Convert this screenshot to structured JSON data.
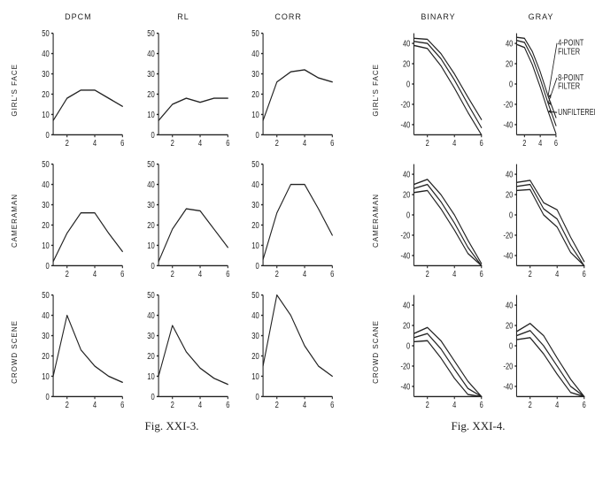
{
  "colors": {
    "background": "#ffffff",
    "ink": "#222222"
  },
  "typography": {
    "header_fontsize": 9,
    "rowlabel_fontsize": 8,
    "tick_fontsize": 7,
    "caption_fontsize": 13,
    "caption_family": "Times New Roman"
  },
  "figure_left": {
    "caption": "Fig. XXI-3.",
    "columns": [
      "DPCM",
      "RL",
      "CORR"
    ],
    "rows": [
      "GIRL'S FACE",
      "CAMERAMAN",
      "CROWD SCENE"
    ],
    "panel": {
      "xlim": [
        1,
        6
      ],
      "ylim": [
        0,
        50
      ],
      "xticks": [
        2,
        4,
        6
      ],
      "yticks": [
        0,
        10,
        20,
        30,
        40,
        50
      ],
      "xtick_labels": [
        "2",
        "4",
        "6"
      ],
      "ytick_labels": [
        "0",
        "10",
        "20",
        "30",
        "40",
        "50"
      ],
      "line_color": "#222222",
      "line_width": 1
    },
    "data": {
      "girls_face": {
        "dpcm": {
          "x": [
            1,
            2,
            3,
            4,
            5,
            6
          ],
          "y": [
            7,
            18,
            22,
            22,
            18,
            14
          ]
        },
        "rl": {
          "x": [
            1,
            2,
            3,
            4,
            5,
            6
          ],
          "y": [
            7,
            15,
            18,
            16,
            18,
            18
          ]
        },
        "corr": {
          "x": [
            1,
            2,
            3,
            4,
            5,
            6
          ],
          "y": [
            7,
            26,
            31,
            32,
            28,
            26
          ]
        }
      },
      "cameraman": {
        "dpcm": {
          "x": [
            1,
            2,
            3,
            4,
            5,
            6
          ],
          "y": [
            2,
            16,
            26,
            26,
            16,
            7
          ]
        },
        "rl": {
          "x": [
            1,
            2,
            3,
            4,
            5,
            6
          ],
          "y": [
            2,
            18,
            28,
            27,
            18,
            9
          ]
        },
        "corr": {
          "x": [
            1,
            2,
            3,
            4,
            5,
            6
          ],
          "y": [
            3,
            26,
            40,
            40,
            28,
            15
          ]
        }
      },
      "crowd_scene": {
        "dpcm": {
          "x": [
            1,
            2,
            3,
            4,
            5,
            6
          ],
          "y": [
            10,
            40,
            23,
            15,
            10,
            7
          ]
        },
        "rl": {
          "x": [
            1,
            2,
            3,
            4,
            5,
            6
          ],
          "y": [
            10,
            35,
            22,
            14,
            9,
            6
          ]
        },
        "corr": {
          "x": [
            1,
            2,
            3,
            4,
            5,
            6
          ],
          "y": [
            15,
            50,
            40,
            25,
            15,
            10
          ]
        }
      }
    }
  },
  "figure_right": {
    "caption": "Fig. XXI-4.",
    "columns": [
      "BINARY",
      "GRAY"
    ],
    "rows": [
      "GIRL'S FACE",
      "CAMERAMAN",
      "CROWD SCANE"
    ],
    "panel": {
      "xlim": [
        1,
        6
      ],
      "ylim": [
        -50,
        50
      ],
      "xticks": [
        2,
        4,
        6
      ],
      "yticks": [
        -40,
        -20,
        0,
        20,
        40
      ],
      "xtick_labels": [
        "2",
        "4",
        "6"
      ],
      "ytick_labels": [
        "-40",
        "-20",
        "0",
        "20",
        "40"
      ],
      "line_color": "#222222",
      "line_width": 1
    },
    "series_order": [
      "four_point",
      "eight_point",
      "unfiltered"
    ],
    "annotations_on": {
      "row": 0,
      "col": 1
    },
    "annotation_labels": {
      "four_point": "4-POINT FILTER",
      "eight_point": "8-POINT FILTER",
      "unfiltered": "UNFILTERED"
    },
    "data": {
      "girls_face": {
        "binary": {
          "four_point": {
            "x": [
              1,
              2,
              3,
              4,
              5,
              6
            ],
            "y": [
              45,
              44,
              30,
              10,
              -13,
              -35
            ]
          },
          "eight_point": {
            "x": [
              1,
              2,
              3,
              4,
              5,
              6
            ],
            "y": [
              42,
              40,
              25,
              4,
              -20,
              -43
            ]
          },
          "unfiltered": {
            "x": [
              1,
              2,
              3,
              4,
              5,
              6
            ],
            "y": [
              38,
              35,
              18,
              -4,
              -28,
              -50
            ]
          }
        },
        "gray": {
          "four_point": {
            "x": [
              1,
              2,
              3,
              4,
              5,
              6
            ],
            "y": [
              46,
              45,
              32,
              12,
              -12,
              -33
            ]
          },
          "eight_point": {
            "x": [
              1,
              2,
              3,
              4,
              5,
              6
            ],
            "y": [
              43,
              41,
              26,
              5,
              -19,
              -41
            ]
          },
          "unfiltered": {
            "x": [
              1,
              2,
              3,
              4,
              5,
              6
            ],
            "y": [
              39,
              36,
              19,
              -3,
              -27,
              -49
            ]
          }
        }
      },
      "cameraman": {
        "binary": {
          "four_point": {
            "x": [
              1,
              2,
              3,
              4,
              5,
              6
            ],
            "y": [
              30,
              35,
              20,
              0,
              -25,
              -48
            ]
          },
          "eight_point": {
            "x": [
              1,
              2,
              3,
              4,
              5,
              6
            ],
            "y": [
              26,
              30,
              13,
              -8,
              -32,
              -50
            ]
          },
          "unfiltered": {
            "x": [
              1,
              2,
              3,
              4,
              5,
              6
            ],
            "y": [
              22,
              24,
              6,
              -15,
              -38,
              -50
            ]
          }
        },
        "gray": {
          "four_point": {
            "x": [
              1,
              2,
              3,
              4,
              5,
              6
            ],
            "y": [
              32,
              34,
              12,
              5,
              -22,
              -46
            ]
          },
          "eight_point": {
            "x": [
              1,
              2,
              3,
              4,
              5,
              6
            ],
            "y": [
              28,
              30,
              6,
              -4,
              -30,
              -50
            ]
          },
          "unfiltered": {
            "x": [
              1,
              2,
              3,
              4,
              5,
              6
            ],
            "y": [
              24,
              25,
              0,
              -12,
              -37,
              -50
            ]
          }
        }
      },
      "crowd_scene": {
        "binary": {
          "four_point": {
            "x": [
              1,
              2,
              3,
              4,
              5,
              6
            ],
            "y": [
              12,
              18,
              5,
              -15,
              -35,
              -50
            ]
          },
          "eight_point": {
            "x": [
              1,
              2,
              3,
              4,
              5,
              6
            ],
            "y": [
              8,
              12,
              -3,
              -23,
              -42,
              -50
            ]
          },
          "unfiltered": {
            "x": [
              1,
              2,
              3,
              4,
              5,
              6
            ],
            "y": [
              4,
              5,
              -12,
              -32,
              -48,
              -50
            ]
          }
        },
        "gray": {
          "four_point": {
            "x": [
              1,
              2,
              3,
              4,
              5,
              6
            ],
            "y": [
              14,
              22,
              10,
              -12,
              -33,
              -50
            ]
          },
          "eight_point": {
            "x": [
              1,
              2,
              3,
              4,
              5,
              6
            ],
            "y": [
              10,
              15,
              0,
              -20,
              -40,
              -50
            ]
          },
          "unfiltered": {
            "x": [
              1,
              2,
              3,
              4,
              5,
              6
            ],
            "y": [
              6,
              8,
              -8,
              -28,
              -46,
              -50
            ]
          }
        }
      }
    }
  }
}
